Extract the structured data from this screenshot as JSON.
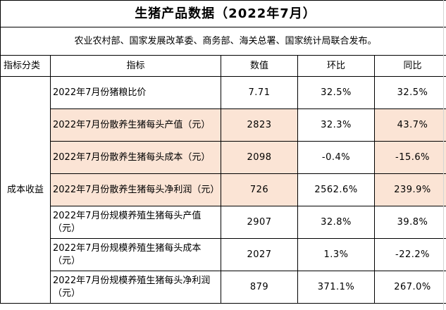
{
  "title": "生猪产品数据（2022年7月）",
  "subtitle": "农业农村部、国家发展改革委、商务部、海关总署、国家统计局联合发布。",
  "headers": {
    "category": "指标分类",
    "indicator": "指标",
    "value": "数值",
    "mom": "环比",
    "yoy": "同比"
  },
  "category": "成本收益",
  "rows": [
    {
      "indicator": "2022年7月份猪粮比价",
      "value": "7.71",
      "mom": "32.5%",
      "yoy": "32.5%"
    },
    {
      "indicator": "2022年7月份散养生猪每头产值（元）",
      "value": "2823",
      "mom": "32.3%",
      "yoy": "43.7%"
    },
    {
      "indicator": "2022年7月份散养生猪每头成本（元）",
      "value": "2098",
      "mom": "-0.4%",
      "yoy": "-15.6%"
    },
    {
      "indicator": "2022年7月份散养生猪每头净利润（元）",
      "value": "726",
      "mom": "2562.6%",
      "yoy": "239.9%"
    },
    {
      "indicator": "2022年7月份规模养殖生猪每头产值（元）",
      "value": "2907",
      "mom": "32.8%",
      "yoy": "39.8%"
    },
    {
      "indicator": "2022年7月份规模养殖生猪每头成本（元）",
      "value": "2027",
      "mom": "1.3%",
      "yoy": "-22.2%"
    },
    {
      "indicator": "2022年7月份规模养殖生猪每头净利润（元）",
      "value": "879",
      "mom": "371.1%",
      "yoy": "267.0%"
    }
  ],
  "colors": {
    "highlight": "#fbe4d5",
    "border": "#000000"
  }
}
